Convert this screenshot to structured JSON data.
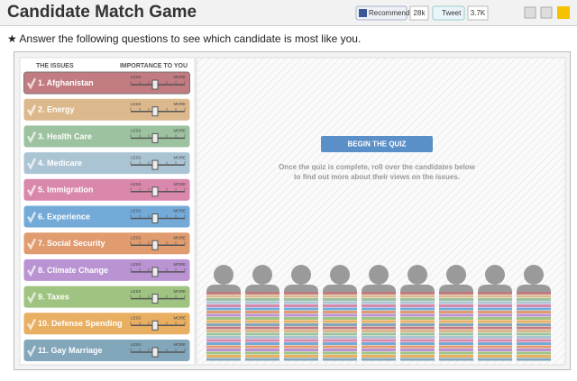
{
  "header": {
    "title": "Candidate Match Game",
    "recommend": "Recommend",
    "recommend_count": "28k",
    "tweet": "Tweet",
    "tweet_count": "3.7K"
  },
  "instruction": "★ Answer the following questions to see which candidate is most like you.",
  "panel": {
    "issues_heading": "THE ISSUES",
    "importance_heading": "IMPORTANCE TO YOU",
    "less": "LESS",
    "more": "MORE",
    "issues": [
      {
        "label": "1. Afghanistan",
        "color": "#c27b80"
      },
      {
        "label": "2. Energy",
        "color": "#dcb98c"
      },
      {
        "label": "3. Health Care",
        "color": "#9cc2a0"
      },
      {
        "label": "4. Medicare",
        "color": "#abc4d4"
      },
      {
        "label": "5. Immigration",
        "color": "#d987ab"
      },
      {
        "label": "6. Experience",
        "color": "#74aad8"
      },
      {
        "label": "7. Social Security",
        "color": "#e09b6f"
      },
      {
        "label": "8. Climate Change",
        "color": "#b993d2"
      },
      {
        "label": "9. Taxes",
        "color": "#9fc380"
      },
      {
        "label": "10. Defense Spending",
        "color": "#e8ae62"
      },
      {
        "label": "11. Gay Marriage",
        "color": "#82a6ba"
      }
    ],
    "button": "BEGIN THE QUIZ",
    "note_lines": [
      "Once the quiz is complete, roll over the candidates below",
      "to find out more about their views on the issues."
    ]
  }
}
